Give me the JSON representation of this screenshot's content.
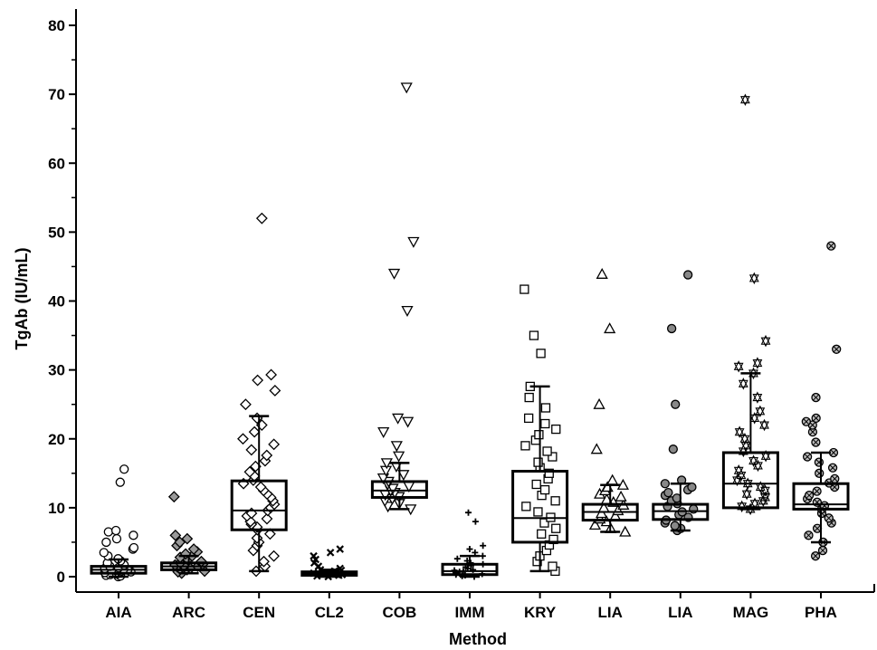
{
  "chart_data": {
    "type": "box-dot",
    "title": "",
    "xlabel": "Method",
    "ylabel": "TgAb (IU/mL)",
    "ylim": [
      -2,
      82
    ],
    "yticks": [
      0,
      10,
      20,
      30,
      40,
      50,
      60,
      70,
      80
    ],
    "grid": false,
    "categories": [
      "AIA",
      "ARC",
      "CEN",
      "CL2",
      "COB",
      "IMM",
      "KRY",
      "LIA",
      "LIA",
      "MAG",
      "PHA"
    ],
    "series": [
      {
        "marker": "circle",
        "q1": 0.5,
        "median": 1.0,
        "q3": 1.5,
        "whisker_low": 0.0,
        "whisker_high": 2.5,
        "points": [
          0.0,
          0.1,
          0.2,
          0.3,
          0.4,
          0.5,
          0.6,
          0.7,
          0.8,
          0.9,
          1.0,
          1.0,
          1.1,
          1.2,
          1.3,
          1.5,
          1.7,
          2.0,
          2.3,
          2.6,
          3.0,
          3.5,
          4.0,
          4.2,
          5.0,
          5.5,
          6.0,
          6.5,
          6.7,
          13.7,
          15.6
        ]
      },
      {
        "marker": "diamond-cross",
        "q1": 1.0,
        "median": 1.5,
        "q3": 2.0,
        "whisker_low": 0.5,
        "whisker_high": 3.0,
        "points": [
          0.5,
          0.7,
          0.8,
          1.0,
          1.1,
          1.2,
          1.3,
          1.4,
          1.5,
          1.5,
          1.6,
          1.7,
          1.8,
          2.0,
          2.2,
          2.5,
          2.8,
          3.0,
          3.3,
          3.6,
          4.0,
          4.5,
          5.0,
          5.5,
          6.0,
          11.6
        ]
      },
      {
        "marker": "diamond",
        "q1": 6.8,
        "median": 9.6,
        "q3": 13.9,
        "whisker_low": 0.8,
        "whisker_high": 23.3,
        "points": [
          0.8,
          1.5,
          2.2,
          3.0,
          3.8,
          4.5,
          5.0,
          5.6,
          6.2,
          6.8,
          7.2,
          7.6,
          8.0,
          8.4,
          8.8,
          9.2,
          9.6,
          10.0,
          10.5,
          11.0,
          11.5,
          12.0,
          12.5,
          13.0,
          13.5,
          14.0,
          14.6,
          15.2,
          16.0,
          16.8,
          17.6,
          18.4,
          19.2,
          20.0,
          21.0,
          22.0,
          23.0,
          25.0,
          27.0,
          28.5,
          29.3,
          52.0
        ]
      },
      {
        "marker": "x-cross",
        "q1": 0.2,
        "median": 0.5,
        "q3": 0.7,
        "whisker_low": 0.0,
        "whisker_high": 1.0,
        "points": [
          0.0,
          0.1,
          0.2,
          0.3,
          0.4,
          0.5,
          0.5,
          0.6,
          0.7,
          0.8,
          0.9,
          1.0,
          1.2,
          1.5,
          2.0,
          2.5,
          3.0,
          3.5,
          4.0
        ]
      },
      {
        "marker": "triangle-down",
        "q1": 11.5,
        "median": 12.5,
        "q3": 13.8,
        "whisker_low": 9.8,
        "whisker_high": 16.5,
        "points": [
          9.8,
          10.2,
          10.6,
          11.0,
          11.3,
          11.6,
          11.9,
          12.2,
          12.5,
          12.8,
          13.1,
          13.4,
          13.8,
          14.3,
          14.8,
          15.4,
          16.0,
          16.5,
          17.5,
          19.0,
          21.0,
          22.5,
          23.0,
          38.6,
          44.0,
          48.6,
          71.0
        ]
      },
      {
        "marker": "plus",
        "q1": 0.3,
        "median": 0.8,
        "q3": 1.8,
        "whisker_low": 0.0,
        "whisker_high": 3.0,
        "points": [
          0.0,
          0.1,
          0.2,
          0.3,
          0.4,
          0.5,
          0.6,
          0.7,
          0.8,
          0.9,
          1.0,
          1.2,
          1.4,
          1.6,
          1.8,
          2.0,
          2.3,
          2.6,
          3.0,
          3.5,
          4.0,
          4.5,
          8.0,
          9.3
        ]
      },
      {
        "marker": "square",
        "q1": 5.0,
        "median": 8.5,
        "q3": 15.3,
        "whisker_low": 0.8,
        "whisker_high": 27.6,
        "points": [
          0.8,
          1.5,
          2.2,
          3.0,
          3.8,
          4.6,
          5.4,
          6.2,
          7.0,
          7.8,
          8.6,
          9.4,
          10.2,
          11.0,
          11.8,
          12.6,
          13.4,
          14.2,
          15.0,
          15.8,
          16.6,
          17.4,
          18.2,
          19.0,
          19.8,
          20.6,
          21.4,
          22.2,
          23.0,
          24.5,
          26.0,
          27.6,
          32.4,
          35.0,
          41.7
        ]
      },
      {
        "marker": "triangle-up",
        "q1": 8.2,
        "median": 9.4,
        "q3": 10.5,
        "whisker_low": 6.5,
        "whisker_high": 13.3,
        "points": [
          6.5,
          7.0,
          7.5,
          8.0,
          8.4,
          8.8,
          9.2,
          9.6,
          10.0,
          10.4,
          10.8,
          11.2,
          11.6,
          12.0,
          12.5,
          13.0,
          13.3,
          14.0,
          18.5,
          25.0,
          36.0,
          43.9
        ]
      },
      {
        "marker": "circle-dot",
        "q1": 8.3,
        "median": 9.5,
        "q3": 10.5,
        "whisker_low": 6.7,
        "whisker_high": 13.5,
        "points": [
          6.7,
          7.0,
          7.4,
          7.8,
          8.2,
          8.6,
          9.0,
          9.4,
          9.8,
          10.2,
          10.6,
          11.0,
          11.4,
          11.8,
          12.2,
          12.6,
          13.0,
          13.5,
          14.0,
          18.5,
          25.0,
          36.0,
          43.8
        ]
      },
      {
        "marker": "star",
        "q1": 10.0,
        "median": 13.5,
        "q3": 18.0,
        "whisker_low": 9.8,
        "whisker_high": 29.5,
        "points": [
          9.8,
          10.2,
          10.6,
          11.0,
          11.5,
          12.0,
          12.5,
          13.0,
          13.5,
          14.0,
          14.7,
          15.4,
          16.1,
          16.8,
          17.5,
          18.2,
          19.0,
          20.0,
          21.0,
          22.0,
          23.0,
          24.0,
          26.0,
          28.0,
          29.5,
          30.5,
          31.0,
          34.2,
          43.3,
          69.2
        ]
      },
      {
        "marker": "circle-x",
        "q1": 9.8,
        "median": 10.5,
        "q3": 13.5,
        "whisker_low": 5.0,
        "whisker_high": 18.0,
        "points": [
          3.0,
          3.8,
          5.0,
          6.0,
          7.0,
          7.8,
          8.5,
          9.2,
          9.8,
          10.3,
          10.8,
          11.3,
          11.8,
          12.4,
          13.0,
          13.6,
          14.2,
          15.0,
          15.8,
          16.6,
          17.4,
          18.0,
          19.5,
          21.0,
          22.0,
          22.5,
          23.0,
          26.0,
          33.0,
          48.0
        ]
      }
    ]
  }
}
